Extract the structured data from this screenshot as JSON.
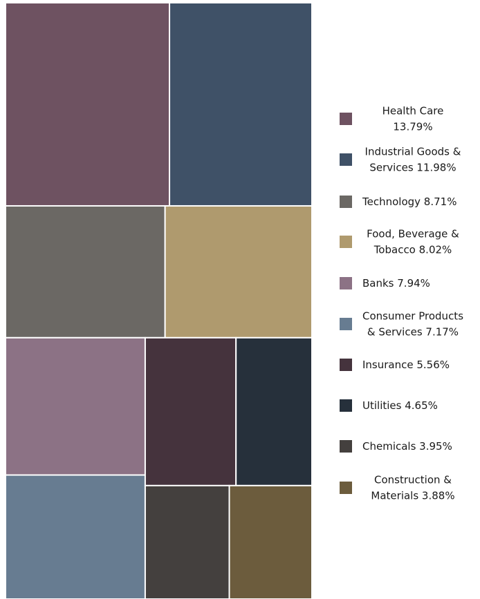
{
  "chart_data": {
    "type": "treemap",
    "series": [
      {
        "name": "Health Care",
        "value": 13.79,
        "label_lines": [
          "Health Care",
          "13.79%"
        ],
        "color": "#6e5261"
      },
      {
        "name": "Industrial Goods & Services",
        "value": 11.98,
        "label_lines": [
          "Industrial Goods &",
          "Services 11.98%"
        ],
        "color": "#3f5167"
      },
      {
        "name": "Technology",
        "value": 8.71,
        "label_lines": [
          "Technology 8.71%"
        ],
        "color": "#6b6864"
      },
      {
        "name": "Food, Beverage & Tobacco",
        "value": 8.02,
        "label_lines": [
          "Food, Beverage &",
          "Tobacco  8.02%"
        ],
        "color": "#af9a6e"
      },
      {
        "name": "Banks",
        "value": 7.94,
        "label_lines": [
          "Banks 7.94%"
        ],
        "color": "#8c7285"
      },
      {
        "name": "Consumer Products & Services",
        "value": 7.17,
        "label_lines": [
          "Consumer Products",
          "& Services 7.17%"
        ],
        "color": "#677c91"
      },
      {
        "name": "Insurance",
        "value": 5.56,
        "label_lines": [
          "Insurance 5.56%"
        ],
        "color": "#45333d"
      },
      {
        "name": "Utilities",
        "value": 4.65,
        "label_lines": [
          "Utilities 4.65%"
        ],
        "color": "#26303b"
      },
      {
        "name": "Chemicals",
        "value": 3.95,
        "label_lines": [
          "Chemicals 3.95%"
        ],
        "color": "#44403e"
      },
      {
        "name": "Construction & Materials",
        "value": 3.88,
        "label_lines": [
          "Construction &",
          "Materials 3.88%"
        ],
        "color": "#6c5c3d"
      }
    ],
    "legend": "right"
  }
}
